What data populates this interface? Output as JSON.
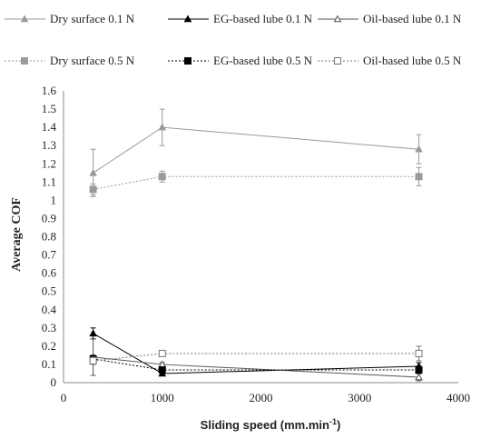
{
  "chart_data": {
    "type": "line",
    "xlabel": "Sliding speed  (mm.min",
    "xlabel_sup": "-1",
    "xlabel_end": ")",
    "ylabel": "Average COF",
    "xlim": [
      0,
      4000
    ],
    "ylim": [
      0,
      1.6
    ],
    "xticks": [
      "0",
      "1000",
      "2000",
      "3000",
      "4000"
    ],
    "yticks": [
      "0",
      "0.1",
      "0.2",
      "0.3",
      "0.4",
      "0.5",
      "0.6",
      "0.7",
      "0.8",
      "0.9",
      "1",
      "1.1",
      "1.2",
      "1.3",
      "1.4",
      "1.5",
      "1.6"
    ],
    "grid": false,
    "legend_position": "top",
    "series": [
      {
        "name": "Dry surface 0.1 N",
        "color": "#9a9a9a",
        "marker": "triangle-filled",
        "dash": "solid",
        "x": [
          300,
          1000,
          3600
        ],
        "y": [
          1.15,
          1.4,
          1.28
        ],
        "err": [
          0.13,
          0.1,
          0.08
        ]
      },
      {
        "name": "EG-based lube 0.1 N",
        "color": "#000000",
        "marker": "triangle-filled",
        "dash": "solid",
        "x": [
          300,
          1000,
          3600
        ],
        "y": [
          0.27,
          0.05,
          0.09
        ],
        "err": [
          0.03,
          0.01,
          0.02
        ]
      },
      {
        "name": "Oil-based lube  0.1 N",
        "color": "#555555",
        "marker": "triangle-open",
        "dash": "solid",
        "x": [
          300,
          1000,
          3600
        ],
        "y": [
          0.14,
          0.1,
          0.03
        ],
        "err": [
          0.1,
          0.01,
          0.02
        ]
      },
      {
        "name": "Dry surface  0.5 N",
        "color": "#9a9a9a",
        "marker": "square-filled",
        "dash": "dotted",
        "x": [
          300,
          1000,
          3600
        ],
        "y": [
          1.06,
          1.13,
          1.13
        ],
        "err": [
          0.03,
          0.03,
          0.05
        ]
      },
      {
        "name": "EG-based lube  0.5 N",
        "color": "#000000",
        "marker": "square-filled",
        "dash": "dotted",
        "x": [
          300,
          1000,
          3600
        ],
        "y": [
          0.13,
          0.07,
          0.07
        ],
        "err": [
          0.02,
          0.01,
          0.02
        ]
      },
      {
        "name": "Oil-based lube  0.5 N",
        "color": "#777777",
        "marker": "square-open",
        "dash": "dotted",
        "x": [
          300,
          1000,
          3600
        ],
        "y": [
          0.12,
          0.16,
          0.16
        ],
        "err": [
          0.02,
          0.01,
          0.04
        ]
      }
    ]
  }
}
